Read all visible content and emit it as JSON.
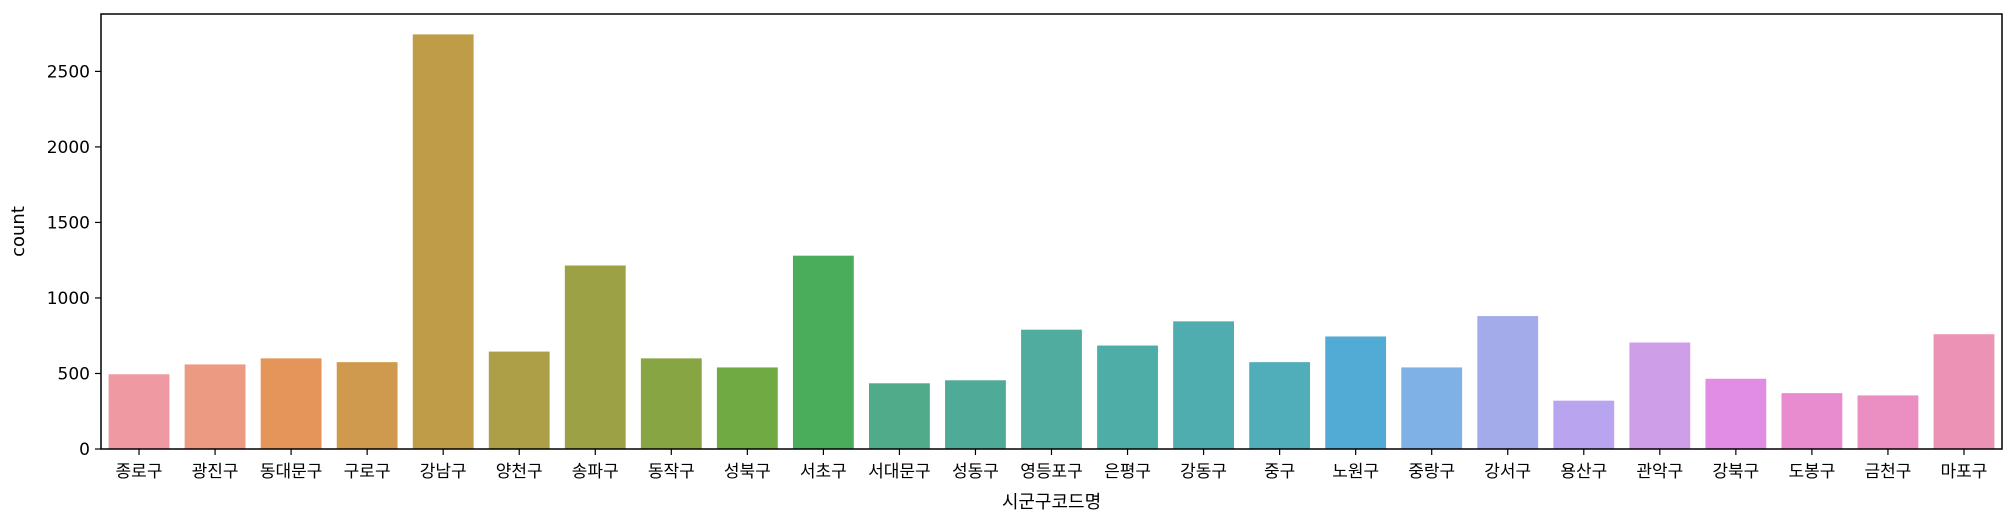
{
  "chart_data": {
    "type": "bar",
    "xlabel": "시군구코드명",
    "ylabel": "count",
    "ylim": [
      0,
      2880
    ],
    "yticks": [
      0,
      500,
      1000,
      1500,
      2000,
      2500
    ],
    "grid": false,
    "categories": [
      "종로구",
      "광진구",
      "동대문구",
      "구로구",
      "강남구",
      "양천구",
      "송파구",
      "동작구",
      "성북구",
      "서초구",
      "서대문구",
      "성동구",
      "영등포구",
      "은평구",
      "강동구",
      "중구",
      "노원구",
      "중랑구",
      "강서구",
      "용산구",
      "관악구",
      "강북구",
      "도봉구",
      "금천구",
      "마포구"
    ],
    "values": [
      495,
      560,
      600,
      575,
      2745,
      645,
      1215,
      600,
      540,
      1280,
      435,
      455,
      790,
      685,
      845,
      575,
      745,
      540,
      880,
      320,
      705,
      465,
      370,
      355,
      760
    ],
    "colors": [
      "#ef9aa2",
      "#ec9a82",
      "#e6955a",
      "#d09a4e",
      "#bf9c47",
      "#ac9f47",
      "#9ba144",
      "#87a543",
      "#6faa43",
      "#4aad5b",
      "#4fab8a",
      "#4fab97",
      "#4fac9f",
      "#4fada7",
      "#4fadaf",
      "#50adba",
      "#52abd4",
      "#7fb0e6",
      "#a3abeb",
      "#b9a4ef",
      "#ce9ee8",
      "#e28de5",
      "#e98bcf",
      "#eb8fc2",
      "#ec92b5"
    ]
  }
}
